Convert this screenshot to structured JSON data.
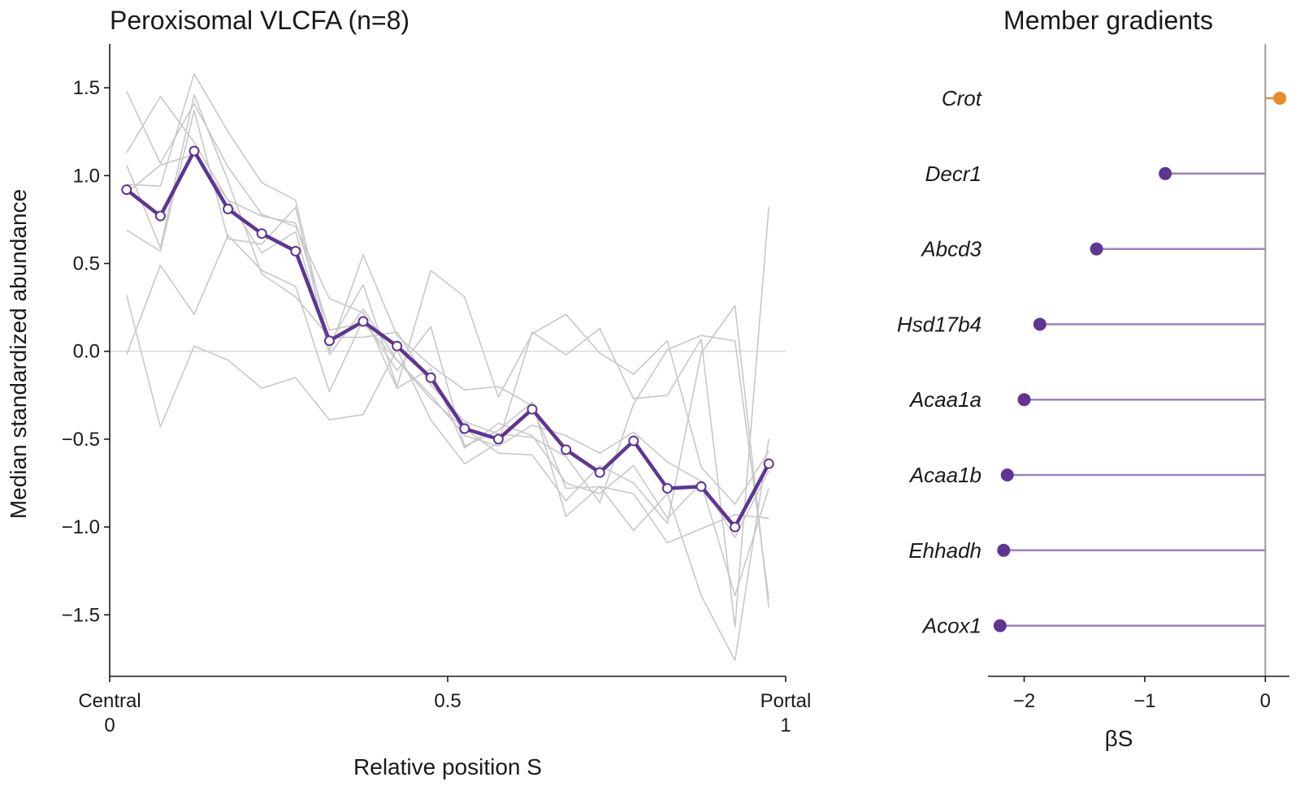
{
  "chart_data": [
    {
      "type": "line",
      "title": "Peroxisomal VLCFA  (n=8)",
      "xlabel": "Relative position S",
      "ylabel": "Median standardized abundance",
      "xlim": [
        0,
        1
      ],
      "ylim": [
        -1.85,
        1.75
      ],
      "x_ticks": [
        {
          "value": 0,
          "label_top": "Central",
          "label_bottom": "0"
        },
        {
          "value": 0.5,
          "label_top": "0.5",
          "label_bottom": ""
        },
        {
          "value": 1,
          "label_top": "Portal",
          "label_bottom": "1"
        }
      ],
      "y_ticks": [
        {
          "value": 1.5,
          "label": "1.5"
        },
        {
          "value": 1.0,
          "label": "1.0"
        },
        {
          "value": 0.5,
          "label": "0.5"
        },
        {
          "value": 0.0,
          "label": "0.0"
        },
        {
          "value": -0.5,
          "label": "−0.5"
        },
        {
          "value": -1.0,
          "label": "−1.0"
        },
        {
          "value": -1.5,
          "label": "−1.5"
        }
      ],
      "reference_line_y": 0,
      "x": [
        0.025,
        0.075,
        0.125,
        0.175,
        0.225,
        0.275,
        0.325,
        0.375,
        0.425,
        0.475,
        0.525,
        0.575,
        0.625,
        0.675,
        0.725,
        0.775,
        0.825,
        0.875,
        0.925,
        0.975
      ],
      "median": {
        "color": "#5e3592",
        "values": [
          0.92,
          0.77,
          1.14,
          0.81,
          0.67,
          0.57,
          0.06,
          0.17,
          0.03,
          -0.15,
          -0.44,
          -0.5,
          -0.33,
          -0.56,
          -0.69,
          -0.51,
          -0.78,
          -0.77,
          -1.0,
          -0.64
        ]
      },
      "member_color": "#c8c8c8",
      "members": [
        {
          "values": [
            1.48,
            1.07,
            1.41,
            1.05,
            0.78,
            0.71,
            0.3,
            0.22,
            -0.21,
            -0.1,
            -0.55,
            -0.41,
            -0.48,
            -0.75,
            -0.81,
            -0.65,
            -0.95,
            -0.75,
            -1.39,
            -0.78
          ]
        },
        {
          "values": [
            1.13,
            1.45,
            1.19,
            0.86,
            0.56,
            0.68,
            0.0,
            0.55,
            0.09,
            -0.08,
            -0.22,
            -0.2,
            -0.31,
            -0.78,
            -0.77,
            -0.81,
            -1.09,
            -1.01,
            -0.93,
            -0.95
          ]
        },
        {
          "values": [
            0.95,
            0.94,
            1.58,
            1.25,
            0.96,
            0.86,
            0.04,
            0.38,
            -0.2,
            0.46,
            0.31,
            -0.26,
            0.1,
            0.21,
            -0.01,
            -0.13,
            0.06,
            -0.66,
            -0.87,
            -0.57
          ]
        },
        {
          "values": [
            0.32,
            -0.43,
            0.03,
            -0.05,
            -0.21,
            -0.15,
            -0.39,
            -0.36,
            0.01,
            -0.39,
            -0.64,
            -0.52,
            0.11,
            -0.02,
            0.13,
            -0.27,
            -0.25,
            0.07,
            -1.57,
            0.82
          ]
        },
        {
          "values": [
            -0.02,
            0.49,
            0.21,
            0.66,
            0.46,
            0.37,
            -0.23,
            0.18,
            -0.11,
            0.14,
            -0.54,
            -0.45,
            -0.29,
            -0.94,
            -0.77,
            -1.02,
            -0.81,
            -1.39,
            -1.76,
            -0.5
          ]
        },
        {
          "values": [
            0.69,
            0.57,
            1.37,
            0.64,
            0.61,
            0.82,
            -0.02,
            0.24,
            -0.05,
            -0.27,
            -0.44,
            -0.58,
            -0.59,
            -0.85,
            -0.65,
            -0.75,
            -0.98,
            -0.01,
            0.26,
            -1.46
          ]
        },
        {
          "values": [
            1.06,
            0.59,
            1.46,
            0.97,
            0.44,
            0.31,
            0.08,
            0.08,
            0.11,
            -0.19,
            -0.4,
            -0.47,
            -0.49,
            -0.6,
            -0.86,
            -0.3,
            0.01,
            0.09,
            0.06,
            -1.41
          ]
        },
        {
          "values": [
            0.9,
            1.06,
            1.12,
            0.86,
            0.77,
            0.73,
            0.12,
            0.16,
            -0.05,
            -0.25,
            -0.48,
            -0.54,
            -0.42,
            -0.48,
            -0.58,
            -0.46,
            -0.63,
            -0.74,
            -1.06,
            -0.68
          ]
        }
      ]
    },
    {
      "type": "lollipop",
      "title": "Member gradients",
      "xlabel": "βS",
      "xlim": [
        -2.3,
        0.2
      ],
      "x_ticks": [
        {
          "value": -2,
          "label": "−2"
        },
        {
          "value": -1,
          "label": "−1"
        },
        {
          "value": 0,
          "label": "0"
        }
      ],
      "categories": [
        "Crot",
        "Decr1",
        "Abcd3",
        "Hsd17b4",
        "Acaa1a",
        "Acaa1b",
        "Ehhadh",
        "Acox1"
      ],
      "values": [
        0.12,
        -0.83,
        -1.4,
        -1.87,
        -2.0,
        -2.14,
        -2.17,
        -2.2
      ],
      "positive_color": "#e8892a",
      "negative_color": "#5e3592",
      "negative_stem_color": "#9a83be",
      "zero_line_color": "#9a9a9a"
    }
  ]
}
